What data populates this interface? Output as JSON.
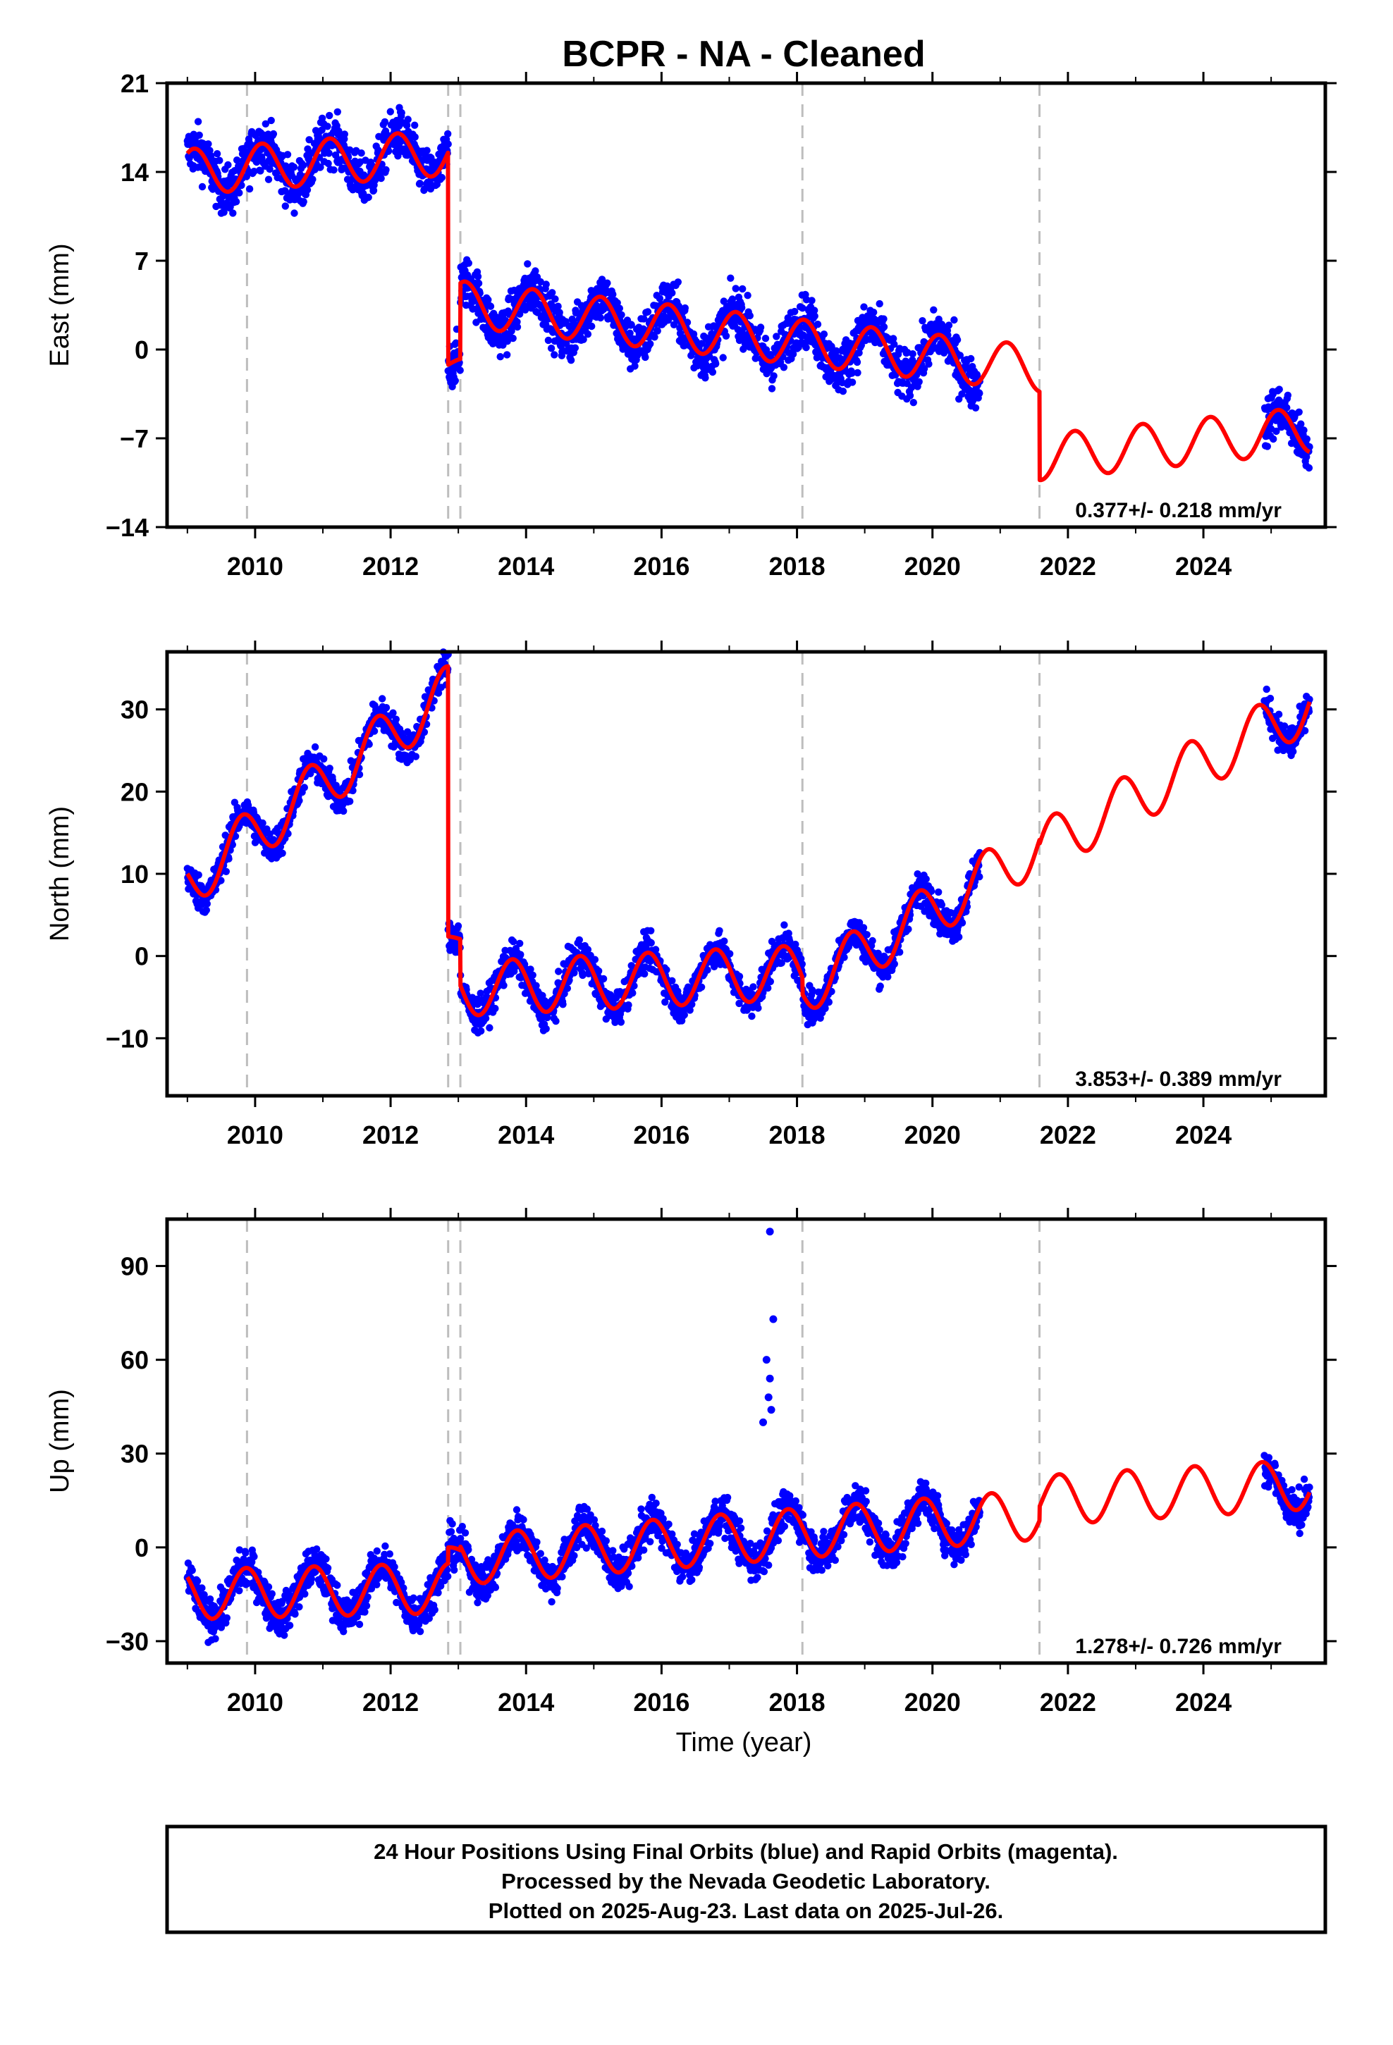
{
  "title": "BCPR  - NA - Cleaned",
  "xlabel": "Time (year)",
  "footer": {
    "line1": "24 Hour Positions Using Final Orbits (blue) and Rapid Orbits (magenta).",
    "line2": "Processed by the Nevada Geodetic Laboratory.",
    "line3": "Plotted on 2025-Aug-23. Last data on 2025-Jul-26."
  },
  "colors": {
    "data": "#0000ff",
    "model": "#ff0000",
    "event_line": "#bdbdbd",
    "axis": "#000000"
  },
  "chart_data": [
    {
      "type": "scatter",
      "name": "east",
      "ylabel": "East (mm)",
      "rate": "0.377+/- 0.218 mm/yr",
      "xlim": [
        2008.7,
        2025.8
      ],
      "ylim": [
        -14,
        21
      ],
      "yticks": [
        -14,
        -7,
        0,
        7,
        14,
        21
      ],
      "yticklabels": [
        "−14",
        "−7",
        "0",
        "7",
        "14",
        "21"
      ],
      "xticks": [
        2010,
        2012,
        2014,
        2016,
        2018,
        2020,
        2022,
        2024
      ],
      "xticklabels": [
        "2010",
        "2012",
        "2014",
        "2016",
        "2018",
        "2020",
        "2022",
        "2024"
      ],
      "event_lines": [
        2009.88,
        2012.85,
        2013.03,
        2018.08,
        2021.58
      ],
      "data_segments": [
        [
          2009.0,
          2012.85
        ],
        [
          2012.85,
          2020.7
        ],
        [
          2024.9,
          2025.57
        ]
      ],
      "model_pieces": [
        {
          "t0": 2009.0,
          "t1": 2012.85,
          "v0": 14.0,
          "rate": 0.4,
          "amp": 1.8,
          "phase": 0.85
        },
        {
          "t0": 2012.85,
          "t1": 2013.03,
          "v0": -1.2,
          "rate": 0.0,
          "amp": 0.5,
          "phase": 0.85
        },
        {
          "t0": 2013.03,
          "t1": 2021.58,
          "v0": 3.6,
          "rate": -0.6,
          "amp": 1.8,
          "phase": 0.85
        },
        {
          "t0": 2021.58,
          "t1": 2025.57,
          "v0": -8.5,
          "rate": 0.55,
          "amp": 1.8,
          "phase": 0.85
        }
      ],
      "noise": 1.4
    },
    {
      "type": "scatter",
      "name": "north",
      "ylabel": "North (mm)",
      "rate": "3.853+/- 0.389 mm/yr",
      "xlim": [
        2008.7,
        2025.8
      ],
      "ylim": [
        -17,
        37
      ],
      "yticks": [
        -10,
        0,
        10,
        20,
        30
      ],
      "yticklabels": [
        "−10",
        "0",
        "10",
        "20",
        "30"
      ],
      "xticks": [
        2010,
        2012,
        2014,
        2016,
        2018,
        2020,
        2022,
        2024
      ],
      "xticklabels": [
        "2010",
        "2012",
        "2014",
        "2016",
        "2018",
        "2020",
        "2022",
        "2024"
      ],
      "event_lines": [
        2009.88,
        2012.85,
        2013.03,
        2018.08,
        2021.58
      ],
      "data_segments": [
        [
          2009.0,
          2012.85
        ],
        [
          2012.85,
          2020.7
        ],
        [
          2024.9,
          2025.57
        ]
      ],
      "model_pieces": [
        {
          "t0": 2009.0,
          "t1": 2012.85,
          "v0": 9.0,
          "rate": 6.0,
          "amp": 3.3,
          "phase": 0.55
        },
        {
          "t0": 2012.85,
          "t1": 2013.03,
          "v0": 2.0,
          "rate": 0.0,
          "amp": 0.4,
          "phase": 0.55
        },
        {
          "t0": 2013.03,
          "t1": 2018.08,
          "v0": -4.0,
          "rate": 0.4,
          "amp": 3.3,
          "phase": 0.55
        },
        {
          "t0": 2018.08,
          "t1": 2021.58,
          "v0": -4.0,
          "rate": 5.0,
          "amp": 3.3,
          "phase": 0.55
        },
        {
          "t0": 2021.58,
          "t1": 2025.57,
          "v0": 13.0,
          "rate": 4.4,
          "amp": 3.3,
          "phase": 0.55
        }
      ],
      "noise": 1.5
    },
    {
      "type": "scatter",
      "name": "up",
      "ylabel": "Up (mm)",
      "rate": "1.278+/- 0.726 mm/yr",
      "xlim": [
        2008.7,
        2025.8
      ],
      "ylim": [
        -37,
        105
      ],
      "yticks": [
        -30,
        0,
        30,
        60,
        90
      ],
      "yticklabels": [
        "−30",
        "0",
        "30",
        "60",
        "90"
      ],
      "xticks": [
        2010,
        2012,
        2014,
        2016,
        2018,
        2020,
        2022,
        2024
      ],
      "xticklabels": [
        "2010",
        "2012",
        "2014",
        "2016",
        "2018",
        "2020",
        "2022",
        "2024"
      ],
      "event_lines": [
        2009.88,
        2012.85,
        2013.03,
        2018.08,
        2021.58
      ],
      "data_segments": [
        [
          2009.0,
          2012.85
        ],
        [
          2012.85,
          2020.7
        ],
        [
          2024.9,
          2025.57
        ]
      ],
      "model_pieces": [
        {
          "t0": 2009.0,
          "t1": 2012.85,
          "v0": -15.0,
          "rate": 0.5,
          "amp": 8.0,
          "phase": 0.62
        },
        {
          "t0": 2012.85,
          "t1": 2013.03,
          "v0": -2.0,
          "rate": 0.0,
          "amp": 2.0,
          "phase": 0.62
        },
        {
          "t0": 2013.03,
          "t1": 2021.58,
          "v0": -4.0,
          "rate": 1.7,
          "amp": 8.0,
          "phase": 0.62
        },
        {
          "t0": 2021.58,
          "t1": 2025.57,
          "v0": 15.0,
          "rate": 1.3,
          "amp": 8.0,
          "phase": 0.62
        }
      ],
      "noise": 4.5,
      "outliers": [
        [
          2017.6,
          101
        ],
        [
          2017.65,
          73
        ],
        [
          2017.55,
          60
        ],
        [
          2017.6,
          54
        ],
        [
          2017.58,
          48
        ],
        [
          2017.62,
          44
        ],
        [
          2017.5,
          40
        ]
      ]
    }
  ]
}
